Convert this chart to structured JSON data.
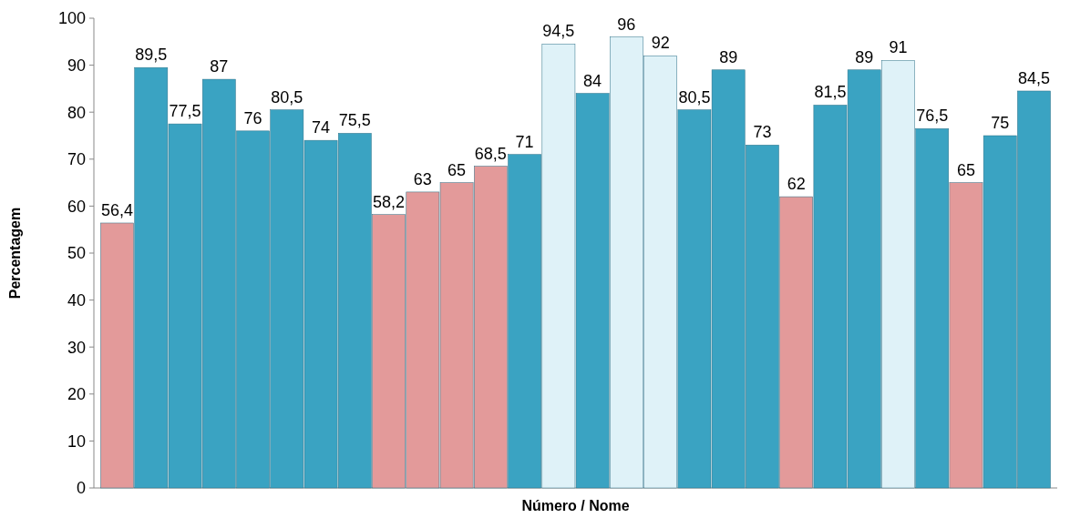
{
  "chart_data": {
    "type": "bar",
    "xlabel": "Número / Nome",
    "ylabel": "Percentagem",
    "categories": [
      null,
      null,
      null,
      null,
      null,
      null,
      null,
      null,
      null,
      null,
      null,
      null,
      null,
      null,
      null,
      null,
      null,
      null,
      null,
      null,
      null,
      null,
      null,
      null,
      null,
      null,
      null,
      null
    ],
    "values": [
      56.4,
      89.5,
      77.5,
      87,
      76,
      80.5,
      74,
      75.5,
      58.2,
      63,
      65,
      68.5,
      71,
      94.5,
      84,
      96,
      92,
      80.5,
      89,
      73,
      62,
      81.5,
      89,
      91,
      76.5,
      65,
      75,
      84.5
    ],
    "value_labels": [
      "56,4",
      "89,5",
      "77,5",
      "87",
      "76",
      "80,5",
      "74",
      "75,5",
      "58,2",
      "63",
      "65",
      "68,5",
      "71",
      "94,5",
      "84",
      "96",
      "92",
      "80,5",
      "89",
      "73",
      "62",
      "81,5",
      "89",
      "91",
      "76,5",
      "65",
      "75",
      "84,5"
    ],
    "colors": [
      "#e39a9a",
      "#3aa3c2",
      "#3aa3c2",
      "#3aa3c2",
      "#3aa3c2",
      "#3aa3c2",
      "#3aa3c2",
      "#3aa3c2",
      "#e39a9a",
      "#e39a9a",
      "#e39a9a",
      "#e39a9a",
      "#3aa3c2",
      "#dff2f8",
      "#3aa3c2",
      "#dff2f8",
      "#dff2f8",
      "#3aa3c2",
      "#3aa3c2",
      "#3aa3c2",
      "#e39a9a",
      "#3aa3c2",
      "#3aa3c2",
      "#dff2f8",
      "#3aa3c2",
      "#e39a9a",
      "#3aa3c2",
      "#3aa3c2"
    ],
    "ylim": [
      0,
      100
    ],
    "yticks": [
      0,
      10,
      20,
      30,
      40,
      50,
      60,
      70,
      80,
      90,
      100
    ],
    "grid": false
  }
}
